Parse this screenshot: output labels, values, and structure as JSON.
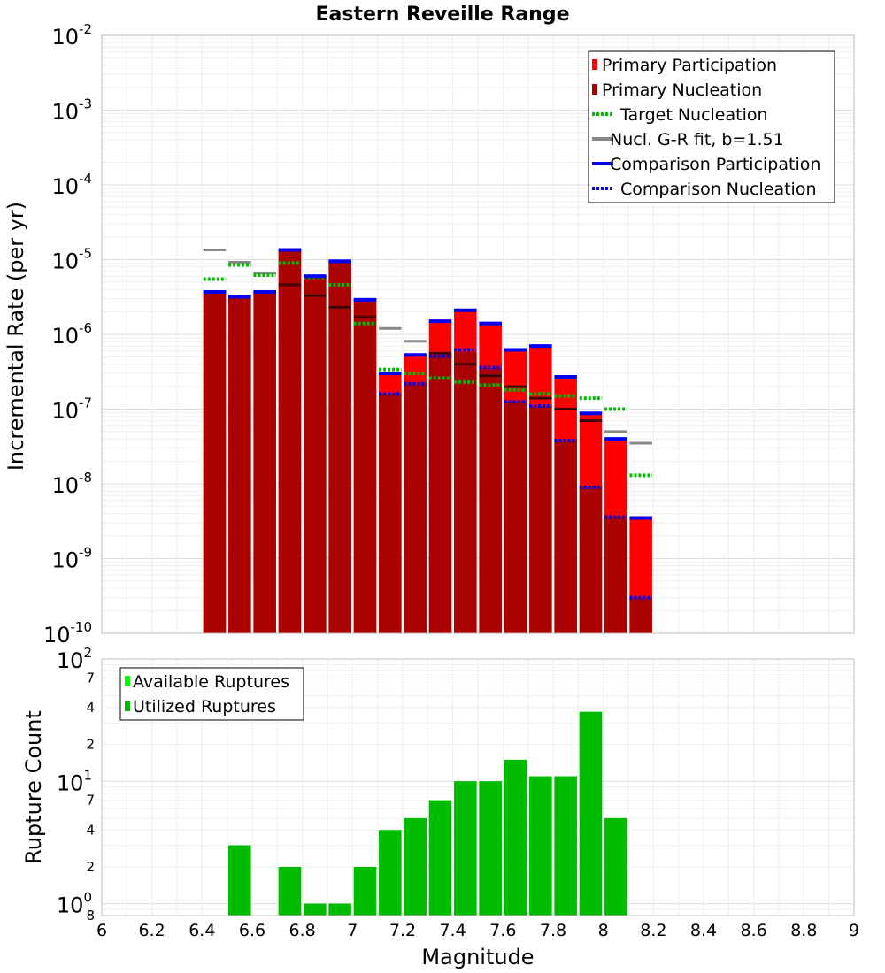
{
  "colors": {
    "primary_participation": "#ff0000",
    "primary_nucleation": "#aa0000",
    "target_nucleation": "#00bb00",
    "gr_fit": "#888888",
    "comparison": "#0000ee",
    "available_ruptures": "#00ff00",
    "utilized_ruptures": "#00bb00",
    "dark_line": "#440000"
  },
  "chart_data": [
    {
      "type": "bar",
      "title": "Eastern Reveille Range",
      "xlabel": "",
      "ylabel": "Incremental Rate (per yr)",
      "yscale": "log",
      "xlim": [
        6,
        9
      ],
      "ylim": [
        1e-10,
        0.01
      ],
      "grid": true,
      "legend_position": "top-right",
      "legend": [
        "Primary Participation",
        "Primary Nucleation",
        "Target Nucleation",
        "Nucl. G-R fit, b=1.51",
        "Comparison Participation",
        "Comparison Nucleation"
      ],
      "x": [
        6.45,
        6.55,
        6.65,
        6.75,
        6.85,
        6.95,
        7.05,
        7.15,
        7.25,
        7.35,
        7.45,
        7.55,
        7.65,
        7.75,
        7.85,
        7.95,
        8.05,
        8.15
      ],
      "series": [
        {
          "name": "Primary Participation",
          "values": [
            3.7e-06,
            3.2e-06,
            3.7e-06,
            1.35e-05,
            6e-06,
            9.5e-06,
            2.9e-06,
            3e-07,
            5.3e-07,
            1.5e-06,
            2.1e-06,
            1.4e-06,
            6.2e-07,
            7e-07,
            2.7e-07,
            8.8e-08,
            4e-08,
            3.5e-09
          ]
        },
        {
          "name": "Primary Nucleation",
          "values": [
            3.7e-06,
            3.2e-06,
            3.7e-06,
            1.35e-05,
            6e-06,
            9.5e-06,
            2.9e-06,
            1.6e-07,
            2.2e-07,
            5.3e-07,
            5.8e-07,
            3.5e-07,
            1.25e-07,
            1.1e-07,
            3.8e-08,
            9e-09,
            3.6e-09,
            3e-10
          ]
        },
        {
          "name": "Target Nucleation",
          "values": [
            5.5e-06,
            8.5e-06,
            6.2e-06,
            9e-06,
            5.8e-06,
            4.6e-06,
            1.4e-06,
            3.4e-07,
            3e-07,
            2.6e-07,
            2.3e-07,
            2.1e-07,
            1.8e-07,
            1.6e-07,
            1.5e-07,
            1.4e-07,
            1e-07,
            1.3e-08
          ]
        },
        {
          "name": "Nucl. G-R fit, b=1.51",
          "values": [
            1.35e-05,
            9.2e-06,
            6.6e-06,
            4.6e-06,
            3.3e-06,
            2.3e-06,
            1.7e-06,
            1.2e-06,
            8.1e-07,
            5.6e-07,
            4e-07,
            2.8e-07,
            2e-07,
            1.4e-07,
            1e-07,
            7e-08,
            5e-08,
            3.5e-08
          ]
        },
        {
          "name": "Comparison Participation",
          "values": [
            3.7e-06,
            3.2e-06,
            3.7e-06,
            1.35e-05,
            6e-06,
            9.5e-06,
            2.9e-06,
            3e-07,
            5.3e-07,
            1.5e-06,
            2.1e-06,
            1.4e-06,
            6.2e-07,
            7e-07,
            2.7e-07,
            8.8e-08,
            4e-08,
            3.5e-09
          ]
        },
        {
          "name": "Comparison Nucleation",
          "values": [
            3.7e-06,
            3.2e-06,
            3.7e-06,
            1.35e-05,
            6e-06,
            9.5e-06,
            2.9e-06,
            1.6e-07,
            2.2e-07,
            5.1e-07,
            6.2e-07,
            3.6e-07,
            1.25e-07,
            1.1e-07,
            3.8e-08,
            9e-09,
            3.6e-09,
            3e-10
          ]
        }
      ],
      "gr_dark_line_values": [
        null,
        null,
        null,
        4.6e-06,
        3.3e-06,
        2.3e-06,
        1.7e-06,
        null,
        null,
        5.6e-07,
        4e-07,
        2.8e-07,
        2e-07,
        1.4e-07,
        1e-07,
        7e-08,
        null,
        null
      ]
    },
    {
      "type": "bar",
      "xlabel": "Magnitude",
      "ylabel": "Rupture Count",
      "yscale": "log",
      "xlim": [
        6,
        9
      ],
      "ylim": [
        0.8,
        100
      ],
      "grid": true,
      "legend_position": "top-left",
      "legend": [
        "Available Ruptures",
        "Utilized Ruptures"
      ],
      "x": [
        6.55,
        6.75,
        6.85,
        6.95,
        7.05,
        7.15,
        7.25,
        7.35,
        7.45,
        7.55,
        7.65,
        7.75,
        7.85,
        7.95,
        8.05
      ],
      "series": [
        {
          "name": "Available Ruptures",
          "values": [
            3,
            2,
            1,
            1,
            2,
            4,
            5,
            7,
            10,
            10,
            15,
            11,
            11,
            37,
            5
          ]
        },
        {
          "name": "Utilized Ruptures",
          "values": [
            3,
            2,
            1,
            1,
            2,
            4,
            5,
            7,
            10,
            10,
            15,
            11,
            11,
            37,
            5
          ]
        }
      ]
    }
  ],
  "axes": {
    "top_y_ticks": [
      {
        "exp": -10,
        "base": "10",
        "sup": "-10"
      },
      {
        "exp": -9,
        "base": "10",
        "sup": "-9"
      },
      {
        "exp": -8,
        "base": "10",
        "sup": "-8"
      },
      {
        "exp": -7,
        "base": "10",
        "sup": "-7"
      },
      {
        "exp": -6,
        "base": "10",
        "sup": "-6"
      },
      {
        "exp": -5,
        "base": "10",
        "sup": "-5"
      },
      {
        "exp": -4,
        "base": "10",
        "sup": "-4"
      },
      {
        "exp": -3,
        "base": "10",
        "sup": "-3"
      },
      {
        "exp": -2,
        "base": "10",
        "sup": "-2"
      }
    ],
    "bottom_y_major": [
      {
        "value": 1,
        "base": "10",
        "sup": "0"
      },
      {
        "value": 10,
        "base": "10",
        "sup": "1"
      },
      {
        "value": 100,
        "base": "10",
        "sup": "2"
      }
    ],
    "bottom_y_minor": [
      {
        "value": 0.8,
        "label": "8"
      },
      {
        "value": 2,
        "label": "2"
      },
      {
        "value": 4,
        "label": "4"
      },
      {
        "value": 7,
        "label": "7"
      },
      {
        "value": 20,
        "label": "2"
      },
      {
        "value": 40,
        "label": "4"
      },
      {
        "value": 70,
        "label": "7"
      }
    ],
    "x_ticks": [
      "6",
      "6.2",
      "6.4",
      "6.6",
      "6.8",
      "7",
      "7.2",
      "7.4",
      "7.6",
      "7.8",
      "8",
      "8.2",
      "8.4",
      "8.6",
      "8.8",
      "9"
    ]
  }
}
